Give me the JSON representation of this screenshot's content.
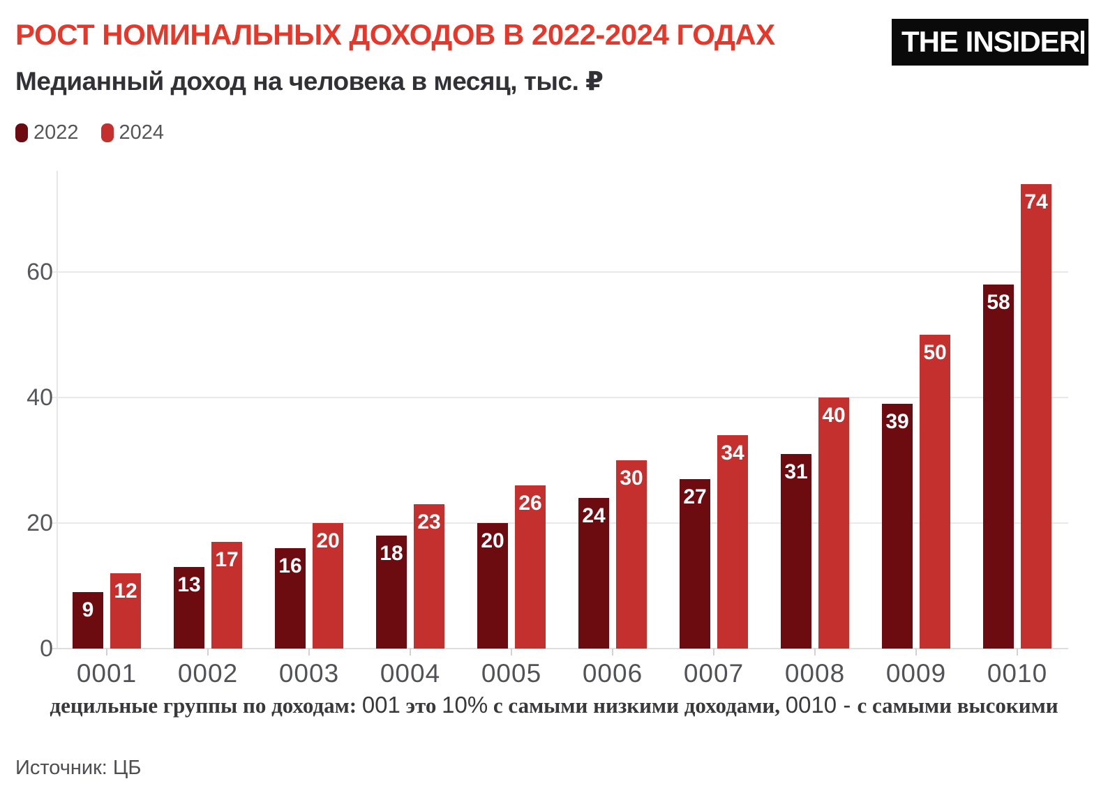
{
  "header": {
    "title": "РОСТ НОМИНАЛЬНЫХ ДОХОДОВ В 2022-2024 ГОДАХ",
    "subtitle": "Медианный доход на человека в месяц, тыс. ₽",
    "logo_text": "THE INSIDER"
  },
  "colors": {
    "title": "#e5382b",
    "series_2022": "#6d0c10",
    "series_2024": "#c4302e",
    "grid": "#e9e9eb",
    "axis_text": "#55575c"
  },
  "legend": [
    {
      "label": "2022",
      "color": "#6d0c10"
    },
    {
      "label": "2024",
      "color": "#c4302e"
    }
  ],
  "chart_data": {
    "type": "bar",
    "title": "РОСТ НОМИНАЛЬНЫХ ДОХОДОВ В 2022-2024 ГОДАХ",
    "subtitle": "Медианный доход на человека в месяц, тыс. ₽",
    "categories": [
      "0001",
      "0002",
      "0003",
      "0004",
      "0005",
      "0006",
      "0007",
      "0008",
      "0009",
      "0010"
    ],
    "series": [
      {
        "name": "2022",
        "color": "#6d0c10",
        "values": [
          9,
          13,
          16,
          18,
          20,
          24,
          27,
          31,
          39,
          58
        ]
      },
      {
        "name": "2024",
        "color": "#c4302e",
        "values": [
          12,
          17,
          20,
          23,
          26,
          30,
          34,
          40,
          50,
          74
        ]
      }
    ],
    "xlabel": "",
    "ylabel": "",
    "ylim": [
      0,
      76
    ],
    "yticks": [
      0,
      20,
      40,
      60
    ],
    "grid": true,
    "legend_position": "top-left",
    "value_labels": "inside-top"
  },
  "footnote": {
    "parts": [
      {
        "text": "децильные группы по доходам: ",
        "style": "serif"
      },
      {
        "text": "001",
        "style": "sans"
      },
      {
        "text": " это ",
        "style": "serif"
      },
      {
        "text": "10%",
        "style": "sans"
      },
      {
        "text": " с самыми низкими доходами, ",
        "style": "serif"
      },
      {
        "text": "0010",
        "style": "sans"
      },
      {
        "text": " - ",
        "style": "sans"
      },
      {
        "text": "с самыми высокими",
        "style": "serif"
      }
    ]
  },
  "source": "Источник: ЦБ"
}
